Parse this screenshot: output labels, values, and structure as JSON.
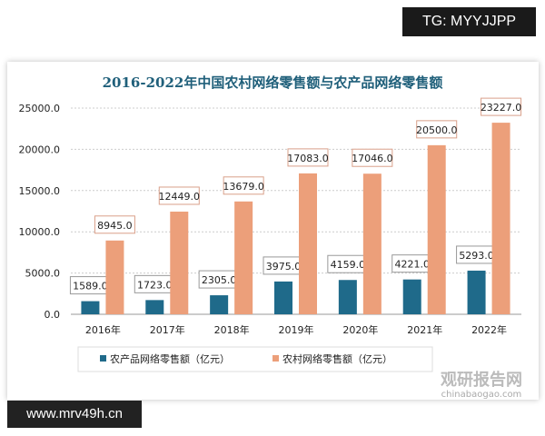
{
  "overlay": {
    "tg": "TG: MYYJJPP",
    "site": "www.mrv49h.cn",
    "watermark": "观研报告网",
    "watermark_url": "chinabaogao.com"
  },
  "chart_data": {
    "type": "bar",
    "title": "2016-2022年中国农村网络零售额与农产品网络零售额",
    "categories": [
      "2016年",
      "2017年",
      "2018年",
      "2019年",
      "2020年",
      "2021年",
      "2022年"
    ],
    "series": [
      {
        "name": "农产品网络零售额（亿元）",
        "color": "#1f6a8a",
        "values": [
          1589.0,
          1723.0,
          2305.0,
          3975.0,
          4159.0,
          4221.0,
          5293.0
        ]
      },
      {
        "name": "农村网络零售额（亿元）",
        "color": "#ec9f7a",
        "values": [
          8945.0,
          12449.0,
          13679.0,
          17083.0,
          17046.0,
          20500.0,
          23227.0
        ]
      }
    ],
    "yticks": [
      "0.0",
      "5000.0",
      "10000.0",
      "15000.0",
      "20000.0",
      "25000.0"
    ],
    "ylim": [
      0,
      25000
    ],
    "grid": true,
    "legend": "bottom"
  }
}
